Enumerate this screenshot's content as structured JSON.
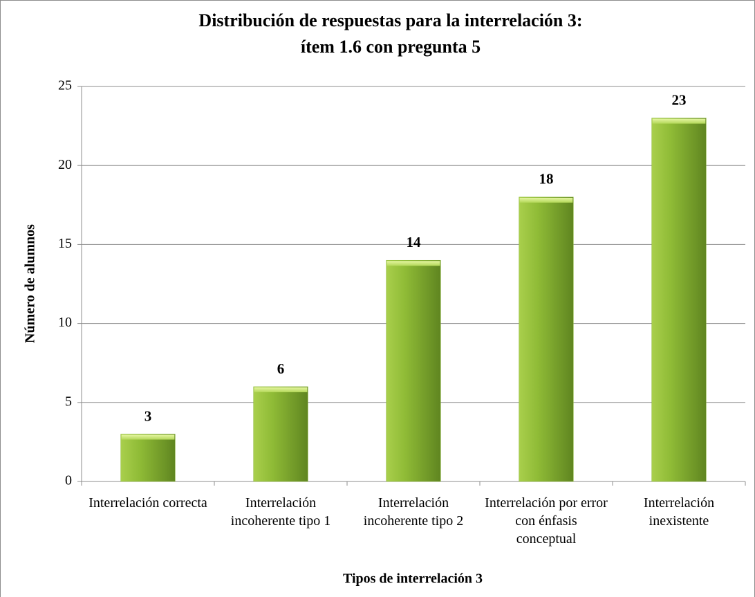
{
  "chart_data": {
    "type": "bar",
    "title": [
      "Distribución de respuestas para la interrelación 3:",
      "ítem 1.6 con pregunta 5"
    ],
    "x_label": "Tipos de interrelación 3",
    "y_label": "Número de alumnos",
    "categories": [
      "Interrelación correcta",
      "Interrelación incoherente tipo 1",
      "Interrelación incoherente tipo 2",
      "Interrelación por error con énfasis conceptual",
      "Interrelación inexistente"
    ],
    "values": [
      3,
      6,
      14,
      18,
      23
    ],
    "color": "#8db83a",
    "ylim": [
      0,
      25
    ],
    "yticks": [
      0,
      5,
      10,
      15,
      20,
      25
    ],
    "grid": true
  }
}
